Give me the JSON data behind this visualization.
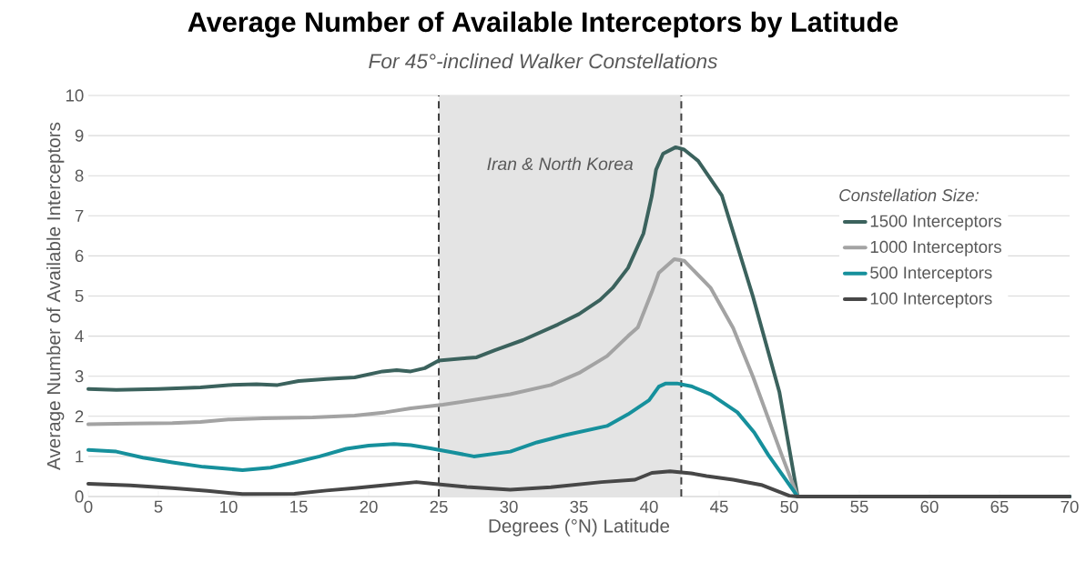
{
  "chart_data": {
    "type": "line",
    "title": "Average Number of Available Interceptors by Latitude",
    "subtitle": "For 45°-inclined Walker Constellations",
    "xlabel": "Degrees (°N) Latitude",
    "ylabel": "Average Number of Available Interceptors",
    "legend_title": "Constellation Size:",
    "xlim": [
      0,
      70
    ],
    "ylim": [
      0,
      10
    ],
    "xticks": [
      0,
      5,
      10,
      15,
      20,
      25,
      30,
      35,
      40,
      45,
      50,
      55,
      60,
      65,
      70
    ],
    "yticks": [
      0,
      1,
      2,
      3,
      4,
      5,
      6,
      7,
      8,
      9,
      10
    ],
    "grid": "y",
    "legend": "right",
    "marker": "none",
    "line_style": "solid",
    "bands": [
      {
        "axis": "x",
        "from": 25,
        "to": 42.3,
        "label": "Iran & North Korea",
        "color": "#e4e4e4"
      }
    ],
    "ref_lines": [
      {
        "axis": "x",
        "value": 25,
        "color": "#404040",
        "line_style": "dashed"
      },
      {
        "axis": "x",
        "value": 42.3,
        "color": "#404040",
        "line_style": "dashed"
      }
    ],
    "series": [
      {
        "name": "1500 Interceptors",
        "color": "#3b625d",
        "x": [
          0,
          2,
          5,
          8,
          10,
          12,
          13.5,
          15,
          17,
          19,
          21,
          22,
          23,
          24,
          25,
          27,
          27.7,
          29,
          31,
          33.5,
          35,
          36.5,
          37.4,
          38.5,
          39.6,
          40.2,
          40.5,
          41,
          41.9,
          42.5,
          43.5,
          45.2,
          47.4,
          49.3,
          50.6,
          70
        ],
        "values": [
          2.68,
          2.66,
          2.68,
          2.72,
          2.78,
          2.8,
          2.78,
          2.88,
          2.93,
          2.97,
          3.12,
          3.15,
          3.12,
          3.2,
          3.39,
          3.45,
          3.47,
          3.65,
          3.9,
          4.29,
          4.55,
          4.9,
          5.2,
          5.7,
          6.56,
          7.5,
          8.15,
          8.55,
          8.71,
          8.65,
          8.37,
          7.5,
          5.0,
          2.6,
          0,
          0
        ]
      },
      {
        "name": "1000 Interceptors",
        "color": "#a3a3a3",
        "x": [
          0,
          3,
          6,
          8,
          10,
          12.5,
          16,
          19,
          21.2,
          23,
          25.3,
          27,
          30.1,
          33,
          35,
          37,
          38.5,
          39.2,
          40.2,
          40.7,
          41.8,
          42.5,
          44.4,
          46,
          47.4,
          49.5,
          50.6,
          70
        ],
        "values": [
          1.8,
          1.82,
          1.83,
          1.86,
          1.92,
          1.95,
          1.97,
          2.02,
          2.1,
          2.2,
          2.29,
          2.38,
          2.55,
          2.78,
          3.08,
          3.5,
          4.0,
          4.22,
          5.1,
          5.58,
          5.92,
          5.88,
          5.2,
          4.2,
          3.0,
          1.0,
          0,
          0
        ]
      },
      {
        "name": "500 Interceptors",
        "color": "#16909c",
        "x": [
          0,
          2,
          3.9,
          6,
          8.2,
          11,
          13,
          14.7,
          16.5,
          18.4,
          20,
          21.8,
          23,
          24.4,
          26,
          27.5,
          30.1,
          32,
          34,
          37,
          38.5,
          40,
          40.7,
          41.2,
          42,
          43,
          44.4,
          46.3,
          47.5,
          48.5,
          50.6,
          70
        ],
        "values": [
          1.16,
          1.12,
          0.97,
          0.85,
          0.74,
          0.66,
          0.72,
          0.85,
          1.0,
          1.19,
          1.27,
          1.31,
          1.28,
          1.2,
          1.1,
          1.0,
          1.12,
          1.35,
          1.53,
          1.76,
          2.05,
          2.4,
          2.74,
          2.82,
          2.82,
          2.75,
          2.55,
          2.1,
          1.6,
          1.04,
          0,
          0
        ]
      },
      {
        "name": "100 Interceptors",
        "color": "#474747",
        "x": [
          0,
          3,
          6,
          8.5,
          11,
          14.7,
          17,
          19,
          21,
          23.4,
          24.6,
          27,
          30.1,
          33,
          36.6,
          39,
          40.2,
          41.5,
          43,
          44.1,
          46,
          48,
          50,
          50.6,
          70
        ],
        "values": [
          0.32,
          0.28,
          0.21,
          0.14,
          0.06,
          0.07,
          0.15,
          0.21,
          0.28,
          0.36,
          0.32,
          0.24,
          0.17,
          0.23,
          0.36,
          0.42,
          0.59,
          0.63,
          0.58,
          0.51,
          0.42,
          0.29,
          0.02,
          0,
          0
        ]
      }
    ]
  }
}
